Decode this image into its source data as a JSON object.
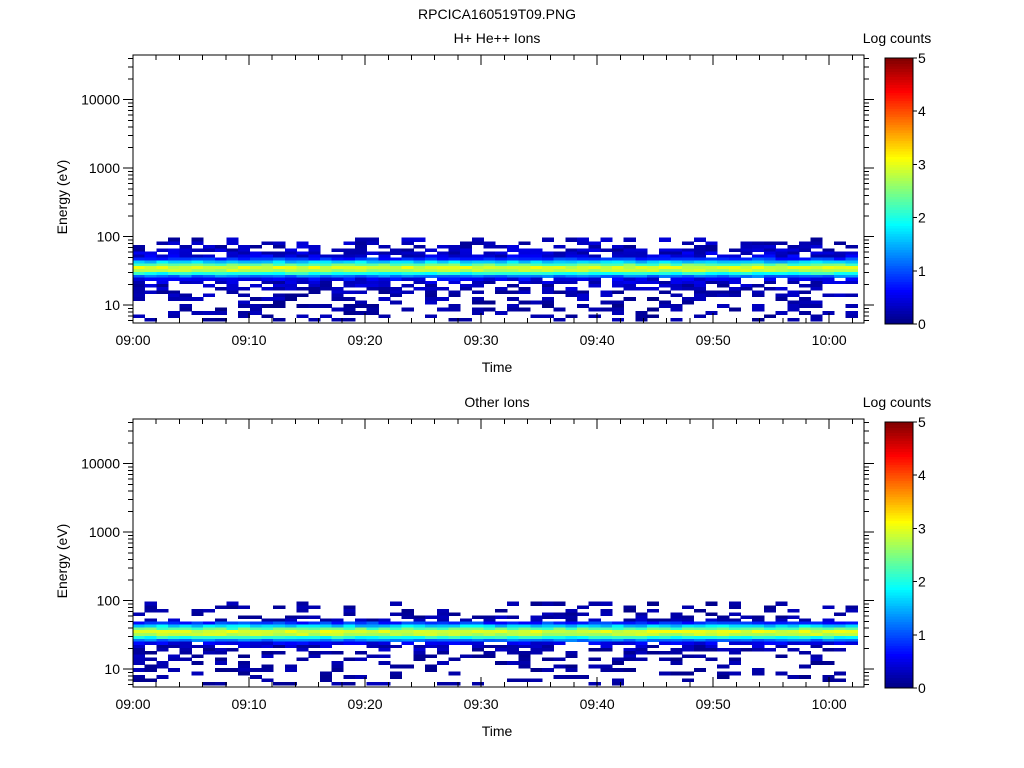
{
  "figure": {
    "title": "RPCICA160519T09.PNG"
  },
  "colormap": {
    "name": "jet",
    "stops": [
      "#00007f",
      "#0000ff",
      "#007fff",
      "#00ffff",
      "#7fff7f",
      "#ffff00",
      "#ff7f00",
      "#ff0000",
      "#7f0000"
    ]
  },
  "chart_data": [
    {
      "type": "heatmap",
      "title": "H+ He++ Ions",
      "xlabel": "Time",
      "ylabel": "Energy (eV)",
      "colorbar_label": "Log counts",
      "colorbar_range": [
        0,
        5
      ],
      "colorbar_ticks": [
        "0",
        "1",
        "2",
        "3",
        "4",
        "5"
      ],
      "x_range": [
        "09:00",
        "10:03"
      ],
      "x_ticks": [
        "09:00",
        "09:10",
        "09:20",
        "09:30",
        "09:40",
        "09:50",
        "10:00"
      ],
      "y_scale": "log",
      "y_range_eV": [
        5.5,
        45000
      ],
      "y_ticks": [
        "10",
        "100",
        "1000",
        "10000"
      ],
      "data_energy_range_eV": [
        6,
        95
      ],
      "x_bins": 62,
      "energy_bins": [
        {
          "e": 90,
          "p": 0.45,
          "lo": 0.1,
          "hi": 0.45
        },
        {
          "e": 80,
          "p": 0.5,
          "lo": 0.1,
          "hi": 0.45
        },
        {
          "e": 72,
          "p": 0.55,
          "lo": 0.1,
          "hi": 0.5
        },
        {
          "e": 64,
          "p": 0.6,
          "lo": 0.1,
          "hi": 0.55
        },
        {
          "e": 58,
          "p": 0.72,
          "lo": 0.15,
          "hi": 0.6
        },
        {
          "e": 52,
          "p": 0.85,
          "lo": 0.2,
          "hi": 0.7
        },
        {
          "e": 47,
          "p": 1.0,
          "lo": 0.6,
          "hi": 1.1
        },
        {
          "e": 43,
          "p": 1.0,
          "lo": 1.4,
          "hi": 1.9
        },
        {
          "e": 39,
          "p": 1.0,
          "lo": 2.1,
          "hi": 2.6
        },
        {
          "e": 35.5,
          "p": 1.0,
          "lo": 2.75,
          "hi": 3.1
        },
        {
          "e": 32,
          "p": 1.0,
          "lo": 2.6,
          "hi": 2.95
        },
        {
          "e": 29,
          "p": 1.0,
          "lo": 1.8,
          "hi": 2.2
        },
        {
          "e": 26.5,
          "p": 1.0,
          "lo": 1.0,
          "hi": 1.4
        },
        {
          "e": 24,
          "p": 0.85,
          "lo": 0.3,
          "hi": 0.75
        },
        {
          "e": 21.5,
          "p": 0.72,
          "lo": 0.15,
          "hi": 0.55
        },
        {
          "e": 19.5,
          "p": 0.6,
          "lo": 0.1,
          "hi": 0.5
        },
        {
          "e": 17.5,
          "p": 0.52,
          "lo": 0.1,
          "hi": 0.45
        },
        {
          "e": 15.5,
          "p": 0.45,
          "lo": 0.05,
          "hi": 0.4
        },
        {
          "e": 14,
          "p": 0.42,
          "lo": 0.05,
          "hi": 0.4
        },
        {
          "e": 12.5,
          "p": 0.4,
          "lo": 0.05,
          "hi": 0.4
        },
        {
          "e": 11,
          "p": 0.38,
          "lo": 0.05,
          "hi": 0.35
        },
        {
          "e": 9.8,
          "p": 0.35,
          "lo": 0.05,
          "hi": 0.35
        },
        {
          "e": 8.7,
          "p": 0.33,
          "lo": 0.05,
          "hi": 0.35
        },
        {
          "e": 7.7,
          "p": 0.3,
          "lo": 0.05,
          "hi": 0.3
        },
        {
          "e": 6.9,
          "p": 0.3,
          "lo": 0.05,
          "hi": 0.3
        },
        {
          "e": 6.2,
          "p": 0.28,
          "lo": 0.05,
          "hi": 0.3
        }
      ],
      "seed": 1605
    },
    {
      "type": "heatmap",
      "title": "Other Ions",
      "xlabel": "Time",
      "ylabel": "Energy (eV)",
      "colorbar_label": "Log counts",
      "colorbar_range": [
        0,
        5
      ],
      "colorbar_ticks": [
        "0",
        "1",
        "2",
        "3",
        "4",
        "5"
      ],
      "x_range": [
        "09:00",
        "10:03"
      ],
      "x_ticks": [
        "09:00",
        "09:10",
        "09:20",
        "09:30",
        "09:40",
        "09:50",
        "10:00"
      ],
      "y_scale": "log",
      "y_range_eV": [
        5.5,
        45000
      ],
      "y_ticks": [
        "10",
        "100",
        "1000",
        "10000"
      ],
      "data_energy_range_eV": [
        6,
        95
      ],
      "x_bins": 62,
      "energy_bins": [
        {
          "e": 90,
          "p": 0.22,
          "lo": 0.05,
          "hi": 0.3
        },
        {
          "e": 80,
          "p": 0.22,
          "lo": 0.05,
          "hi": 0.3
        },
        {
          "e": 72,
          "p": 0.25,
          "lo": 0.05,
          "hi": 0.3
        },
        {
          "e": 64,
          "p": 0.28,
          "lo": 0.05,
          "hi": 0.3
        },
        {
          "e": 58,
          "p": 0.35,
          "lo": 0.05,
          "hi": 0.35
        },
        {
          "e": 52,
          "p": 0.5,
          "lo": 0.1,
          "hi": 0.4
        },
        {
          "e": 47,
          "p": 1.0,
          "lo": 0.6,
          "hi": 1.1
        },
        {
          "e": 43,
          "p": 1.0,
          "lo": 1.4,
          "hi": 1.9
        },
        {
          "e": 39,
          "p": 1.0,
          "lo": 2.1,
          "hi": 2.6
        },
        {
          "e": 35.5,
          "p": 1.0,
          "lo": 2.75,
          "hi": 3.1
        },
        {
          "e": 32,
          "p": 1.0,
          "lo": 2.6,
          "hi": 2.95
        },
        {
          "e": 29,
          "p": 1.0,
          "lo": 1.8,
          "hi": 2.2
        },
        {
          "e": 26.5,
          "p": 1.0,
          "lo": 1.0,
          "hi": 1.4
        },
        {
          "e": 24,
          "p": 0.8,
          "lo": 0.3,
          "hi": 0.7
        },
        {
          "e": 21.5,
          "p": 0.55,
          "lo": 0.1,
          "hi": 0.5
        },
        {
          "e": 19.5,
          "p": 0.42,
          "lo": 0.05,
          "hi": 0.4
        },
        {
          "e": 17.5,
          "p": 0.38,
          "lo": 0.05,
          "hi": 0.35
        },
        {
          "e": 15.5,
          "p": 0.33,
          "lo": 0.05,
          "hi": 0.35
        },
        {
          "e": 14,
          "p": 0.3,
          "lo": 0.05,
          "hi": 0.3
        },
        {
          "e": 12.5,
          "p": 0.28,
          "lo": 0.05,
          "hi": 0.3
        },
        {
          "e": 11,
          "p": 0.26,
          "lo": 0.05,
          "hi": 0.3
        },
        {
          "e": 9.8,
          "p": 0.25,
          "lo": 0.05,
          "hi": 0.3
        },
        {
          "e": 8.7,
          "p": 0.24,
          "lo": 0.05,
          "hi": 0.3
        },
        {
          "e": 7.7,
          "p": 0.22,
          "lo": 0.05,
          "hi": 0.3
        },
        {
          "e": 6.9,
          "p": 0.22,
          "lo": 0.05,
          "hi": 0.3
        },
        {
          "e": 6.2,
          "p": 0.2,
          "lo": 0.05,
          "hi": 0.3
        }
      ],
      "seed": 4221
    }
  ]
}
